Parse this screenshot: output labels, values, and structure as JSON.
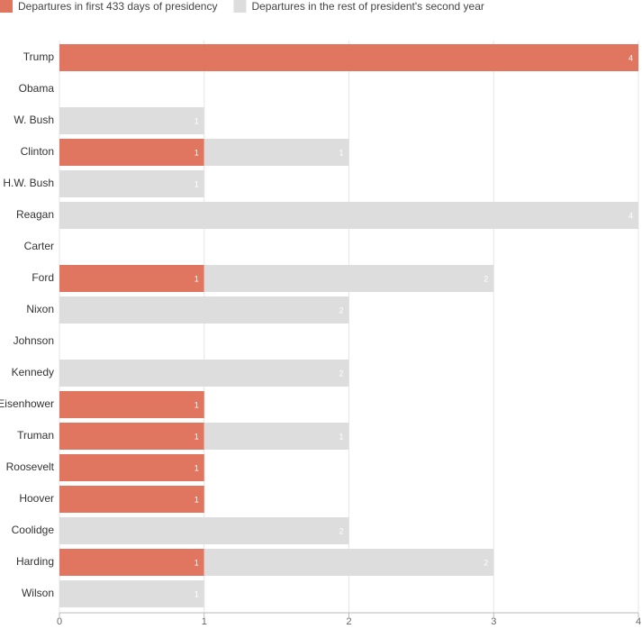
{
  "chart_data": {
    "type": "bar",
    "orientation": "horizontal",
    "stacked": true,
    "categories": [
      "Trump",
      "Obama",
      "W. Bush",
      "Clinton",
      "H.W. Bush",
      "Reagan",
      "Carter",
      "Ford",
      "Nixon",
      "Johnson",
      "Kennedy",
      "Eisenhower",
      "Truman",
      "Roosevelt",
      "Hoover",
      "Coolidge",
      "Harding",
      "Wilson"
    ],
    "series": [
      {
        "name": "Departures in first 433 days of presidency",
        "color": "#e07560",
        "values": [
          4,
          0,
          0,
          1,
          0,
          0,
          0,
          1,
          0,
          0,
          0,
          1,
          1,
          1,
          1,
          0,
          1,
          0
        ]
      },
      {
        "name": "Departures in the rest of president's second year",
        "color": "#dddddd",
        "values": [
          0,
          0,
          1,
          1,
          1,
          4,
          0,
          2,
          2,
          0,
          2,
          0,
          1,
          0,
          0,
          2,
          2,
          1
        ]
      }
    ],
    "xlim": [
      0,
      4
    ],
    "xticks": [
      0,
      1,
      2,
      3,
      4
    ],
    "grid": true
  }
}
